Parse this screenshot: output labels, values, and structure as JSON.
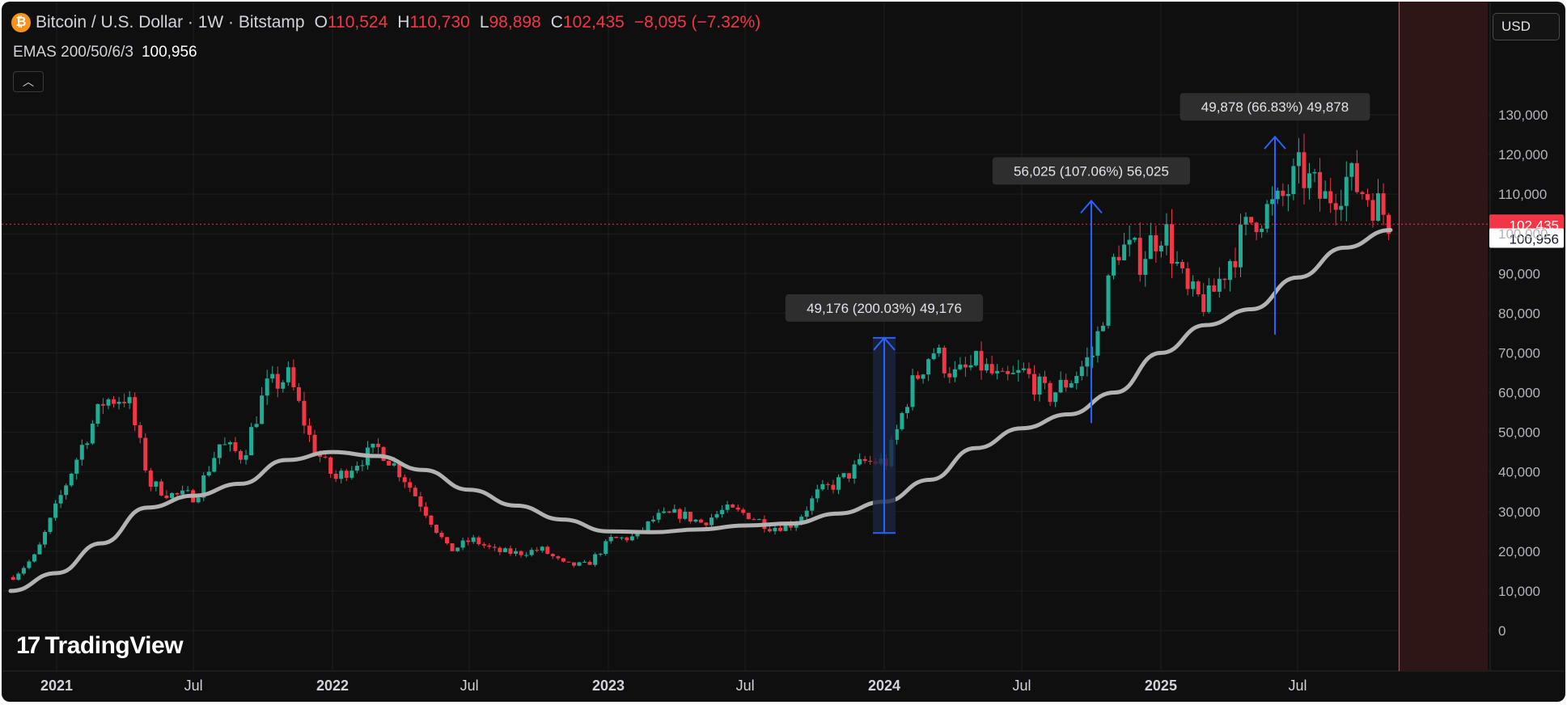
{
  "header": {
    "symbol": "Bitcoin / U.S. Dollar · 1W · Bitstamp",
    "icon": "bitcoin-icon",
    "o_label": "O",
    "o_value": "110,524",
    "h_label": "H",
    "h_value": "110,730",
    "l_label": "L",
    "l_value": "98,898",
    "c_label": "C",
    "c_value": "102,435",
    "change": "−8,095 (−7.32%)"
  },
  "indicator": {
    "label": "EMAS 200/50/6/3",
    "value": "100,956"
  },
  "currency_label": "USD",
  "logo_text": "TradingView",
  "logo_icon": "tradingview-logo-icon",
  "colors": {
    "up": "#22ab94",
    "down": "#f23645",
    "ema": "#b2b2b2",
    "measure": "#2962ff",
    "background": "#0f0f0f"
  },
  "chart_data": {
    "type": "candlestick",
    "interval": "1W",
    "y_axis": {
      "min": 0,
      "max": 130000,
      "ticks": [
        "0",
        "10,000",
        "20,000",
        "30,000",
        "40,000",
        "50,000",
        "60,000",
        "70,000",
        "80,000",
        "90,000",
        "100,000",
        "110,000",
        "120,000",
        "130,000"
      ]
    },
    "x_axis": {
      "ticks": [
        {
          "label": "2021",
          "date": "2021-01",
          "bold": true
        },
        {
          "label": "Jul",
          "date": "2021-07",
          "bold": false
        },
        {
          "label": "2022",
          "date": "2022-01",
          "bold": true
        },
        {
          "label": "Jul",
          "date": "2022-07",
          "bold": false
        },
        {
          "label": "2023",
          "date": "2023-01",
          "bold": true
        },
        {
          "label": "Jul",
          "date": "2023-07",
          "bold": false
        },
        {
          "label": "2024",
          "date": "2024-01",
          "bold": true
        },
        {
          "label": "Jul",
          "date": "2024-07",
          "bold": false
        },
        {
          "label": "2025",
          "date": "2025-01",
          "bold": true
        },
        {
          "label": "Jul",
          "date": "2025-07",
          "bold": false
        }
      ]
    },
    "price_path": [
      [
        "2020-11",
        13500
      ],
      [
        "2020-12",
        19000
      ],
      [
        "2021-01",
        33000
      ],
      [
        "2021-02",
        47000
      ],
      [
        "2021-03",
        58000
      ],
      [
        "2021-04",
        59000
      ],
      [
        "2021-05",
        37000
      ],
      [
        "2021-06",
        34000
      ],
      [
        "2021-07",
        34000
      ],
      [
        "2021-08",
        47000
      ],
      [
        "2021-09",
        44000
      ],
      [
        "2021-10",
        61000
      ],
      [
        "2021-11",
        64000
      ],
      [
        "2021-12",
        47000
      ],
      [
        "2022-01",
        38000
      ],
      [
        "2022-02",
        43000
      ],
      [
        "2022-03",
        46000
      ],
      [
        "2022-04",
        39000
      ],
      [
        "2022-05",
        30000
      ],
      [
        "2022-06",
        20000
      ],
      [
        "2022-07",
        23000
      ],
      [
        "2022-08",
        20000
      ],
      [
        "2022-09",
        19500
      ],
      [
        "2022-10",
        20500
      ],
      [
        "2022-11",
        16500
      ],
      [
        "2022-12",
        16600
      ],
      [
        "2023-01",
        23000
      ],
      [
        "2023-02",
        23500
      ],
      [
        "2023-03",
        28500
      ],
      [
        "2023-04",
        29500
      ],
      [
        "2023-05",
        27200
      ],
      [
        "2023-06",
        30500
      ],
      [
        "2023-07",
        29300
      ],
      [
        "2023-08",
        26000
      ],
      [
        "2023-09",
        27000
      ],
      [
        "2023-10",
        34500
      ],
      [
        "2023-11",
        37800
      ],
      [
        "2023-12",
        42500
      ],
      [
        "2024-01",
        42500
      ],
      [
        "2024-02",
        61000
      ],
      [
        "2024-03",
        71000
      ],
      [
        "2024-04",
        64000
      ],
      [
        "2024-05",
        67500
      ],
      [
        "2024-06",
        62500
      ],
      [
        "2024-07",
        65000
      ],
      [
        "2024-08",
        59000
      ],
      [
        "2024-09",
        63500
      ],
      [
        "2024-10",
        70000
      ],
      [
        "2024-11",
        97000
      ],
      [
        "2024-12",
        94000
      ],
      [
        "2025-01",
        102000
      ],
      [
        "2025-02",
        84500
      ],
      [
        "2025-03",
        82500
      ],
      [
        "2025-04",
        94500
      ],
      [
        "2025-05",
        104500
      ],
      [
        "2025-06",
        107000
      ],
      [
        "2025-07",
        115700
      ],
      [
        "2025-08",
        108300
      ],
      [
        "2025-09",
        114000
      ],
      [
        "2025-10",
        109500
      ],
      [
        "2025-11",
        102435
      ]
    ],
    "ema_path": [
      [
        "2020-11",
        10000
      ],
      [
        "2021-01",
        14500
      ],
      [
        "2021-03",
        22000
      ],
      [
        "2021-05",
        31000
      ],
      [
        "2021-07",
        34000
      ],
      [
        "2021-09",
        37000
      ],
      [
        "2021-11",
        43000
      ],
      [
        "2022-01",
        45000
      ],
      [
        "2022-03",
        44000
      ],
      [
        "2022-05",
        40500
      ],
      [
        "2022-07",
        35500
      ],
      [
        "2022-09",
        31500
      ],
      [
        "2022-11",
        28000
      ],
      [
        "2023-01",
        25000
      ],
      [
        "2023-03",
        24800
      ],
      [
        "2023-05",
        25500
      ],
      [
        "2023-07",
        26500
      ],
      [
        "2023-09",
        27000
      ],
      [
        "2023-11",
        29500
      ],
      [
        "2024-01",
        32500
      ],
      [
        "2024-03",
        38000
      ],
      [
        "2024-05",
        46000
      ],
      [
        "2024-07",
        51000
      ],
      [
        "2024-09",
        54500
      ],
      [
        "2024-11",
        60000
      ],
      [
        "2025-01",
        70000
      ],
      [
        "2025-03",
        77000
      ],
      [
        "2025-05",
        81000
      ],
      [
        "2025-07",
        89000
      ],
      [
        "2025-09",
        96500
      ],
      [
        "2025-11",
        100956
      ]
    ],
    "last_price": {
      "value": 102435,
      "label": "102,435"
    },
    "ema_last": {
      "value": 100956,
      "label": "100,956"
    },
    "measurements": [
      {
        "label": "49,176 (200.03%) 49,176",
        "date": "2024-01",
        "from": 24600,
        "to": 73776
      },
      {
        "label": "56,025 (107.06%) 56,025",
        "date": "2024-10",
        "from": 52300,
        "to": 108325
      },
      {
        "label": "49,878 (66.83%) 49,878",
        "date": "2025-06",
        "from": 74600,
        "to": 124478
      }
    ]
  }
}
